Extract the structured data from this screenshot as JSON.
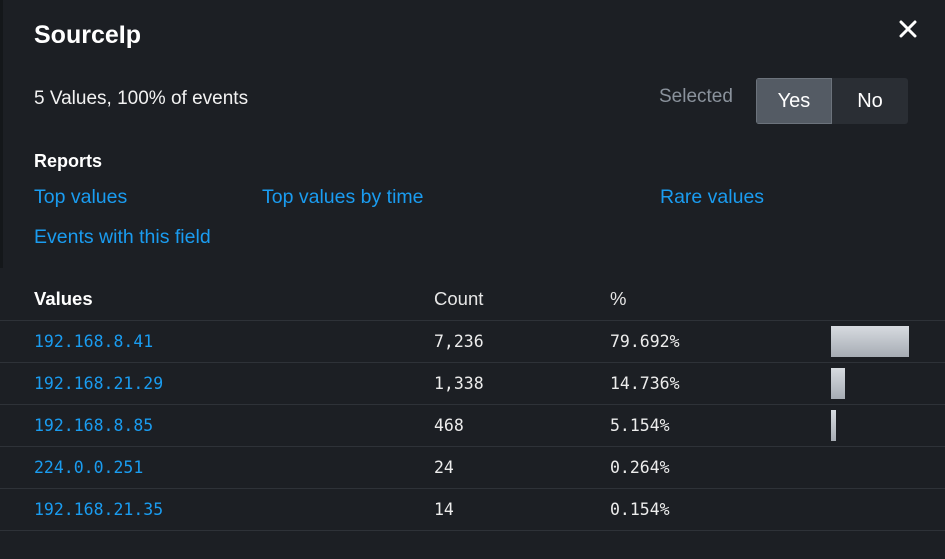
{
  "panel": {
    "title": "SourceIp",
    "close_icon": "close-icon",
    "summary": "5 Values, 100% of events",
    "selected_label": "Selected",
    "toggle": {
      "yes_label": "Yes",
      "no_label": "No",
      "active": "Yes"
    }
  },
  "reports": {
    "heading": "Reports",
    "links": [
      {
        "label": "Top values"
      },
      {
        "label": "Top values by time"
      },
      {
        "label": "Rare values"
      },
      {
        "label": "Events with this field"
      }
    ]
  },
  "table": {
    "headers": {
      "values": "Values",
      "count": "Count",
      "percent": "%"
    },
    "rows": [
      {
        "value": "192.168.8.41",
        "count": "7,236",
        "percent": "79.692%",
        "pct_num": 79.692
      },
      {
        "value": "192.168.21.29",
        "count": "1,338",
        "percent": "14.736%",
        "pct_num": 14.736
      },
      {
        "value": "192.168.8.85",
        "count": "468",
        "percent": "5.154%",
        "pct_num": 5.154
      },
      {
        "value": "224.0.0.251",
        "count": "24",
        "percent": "0.264%",
        "pct_num": 0.264
      },
      {
        "value": "192.168.21.35",
        "count": "14",
        "percent": "0.154%",
        "pct_num": 0.154
      }
    ]
  },
  "colors": {
    "link": "#1a9cf0",
    "background": "#1c1f24",
    "bar": "#c3c8ce"
  }
}
